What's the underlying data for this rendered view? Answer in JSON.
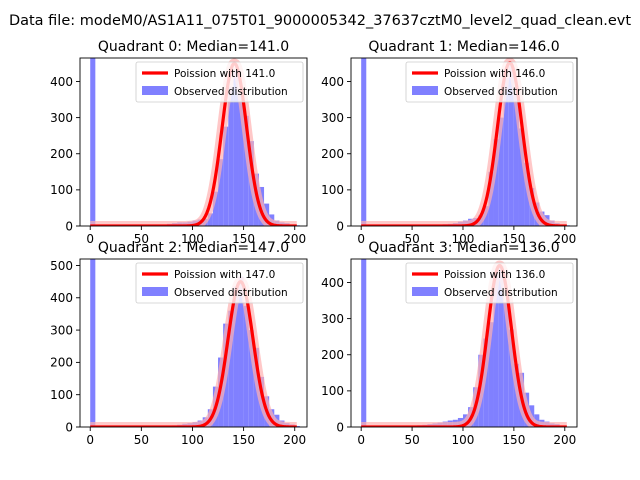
{
  "suptitle": "Data file: modeM0/AS1A11_075T01_9000005342_37637cztM0_level2_quad_clean.evt",
  "colors": {
    "hist": "#8080ff",
    "fit": "#ff0000",
    "fit_band": "#ffb0b0"
  },
  "chart_data": [
    {
      "type": "bar",
      "title": "Quadrant 0: Median=141.0",
      "xlim": [
        -10,
        212
      ],
      "ylim": [
        0,
        465
      ],
      "xticks": [
        0,
        50,
        100,
        150,
        200
      ],
      "yticks": [
        0,
        100,
        200,
        300,
        400
      ],
      "legend": [
        "Poission with 141.0",
        "Observed distribution"
      ],
      "legend_position": "top-right",
      "mu": 141.0,
      "fit_peak": 450,
      "fit_sigma": 12.0,
      "bin_width": 5,
      "bins": [
        [
          0,
          465
        ],
        [
          5,
          3
        ],
        [
          10,
          1
        ],
        [
          50,
          2
        ],
        [
          75,
          6
        ],
        [
          80,
          8
        ],
        [
          85,
          10
        ],
        [
          90,
          10
        ],
        [
          95,
          12
        ],
        [
          100,
          15
        ],
        [
          105,
          18
        ],
        [
          110,
          20
        ],
        [
          115,
          35
        ],
        [
          120,
          95
        ],
        [
          125,
          185
        ],
        [
          130,
          275
        ],
        [
          135,
          385
        ],
        [
          140,
          430
        ],
        [
          145,
          375
        ],
        [
          150,
          305
        ],
        [
          155,
          235
        ],
        [
          160,
          145
        ],
        [
          165,
          108
        ],
        [
          170,
          62
        ],
        [
          175,
          32
        ],
        [
          180,
          15
        ],
        [
          185,
          10
        ],
        [
          190,
          8
        ],
        [
          195,
          4
        ],
        [
          200,
          2
        ]
      ]
    },
    {
      "type": "bar",
      "title": "Quadrant 1: Median=146.0",
      "xlim": [
        -10,
        212
      ],
      "ylim": [
        0,
        465
      ],
      "xticks": [
        0,
        50,
        100,
        150,
        200
      ],
      "yticks": [
        0,
        100,
        200,
        300,
        400
      ],
      "legend": [
        "Poission with 146.0",
        "Observed distribution"
      ],
      "legend_position": "top-right",
      "mu": 146.0,
      "fit_peak": 452,
      "fit_sigma": 12.1,
      "bin_width": 5,
      "bins": [
        [
          0,
          465
        ],
        [
          5,
          3
        ],
        [
          10,
          1
        ],
        [
          80,
          5
        ],
        [
          85,
          6
        ],
        [
          90,
          8
        ],
        [
          95,
          12
        ],
        [
          100,
          15
        ],
        [
          105,
          20
        ],
        [
          110,
          22
        ],
        [
          115,
          30
        ],
        [
          120,
          55
        ],
        [
          125,
          150
        ],
        [
          130,
          240
        ],
        [
          135,
          300
        ],
        [
          140,
          410
        ],
        [
          145,
          445
        ],
        [
          150,
          385
        ],
        [
          155,
          270
        ],
        [
          160,
          175
        ],
        [
          165,
          105
        ],
        [
          170,
          65
        ],
        [
          175,
          40
        ],
        [
          180,
          30
        ],
        [
          185,
          15
        ],
        [
          190,
          8
        ],
        [
          195,
          4
        ],
        [
          200,
          2
        ]
      ]
    },
    {
      "type": "bar",
      "title": "Quadrant 2: Median=147.0",
      "xlim": [
        -10,
        212
      ],
      "ylim": [
        0,
        520
      ],
      "xticks": [
        0,
        50,
        100,
        150,
        200
      ],
      "yticks": [
        0,
        100,
        200,
        300,
        400,
        500
      ],
      "legend": [
        "Poission with 147.0",
        "Observed distribution"
      ],
      "legend_position": "top-right",
      "mu": 147.0,
      "fit_peak": 450,
      "fit_sigma": 12.2,
      "bin_width": 5,
      "bins": [
        [
          0,
          520
        ],
        [
          5,
          3
        ],
        [
          10,
          1
        ],
        [
          80,
          5
        ],
        [
          85,
          7
        ],
        [
          90,
          10
        ],
        [
          95,
          12
        ],
        [
          100,
          15
        ],
        [
          105,
          20
        ],
        [
          110,
          30
        ],
        [
          115,
          55
        ],
        [
          120,
          125
        ],
        [
          125,
          215
        ],
        [
          130,
          320
        ],
        [
          135,
          360
        ],
        [
          140,
          435
        ],
        [
          145,
          465
        ],
        [
          150,
          375
        ],
        [
          155,
          300
        ],
        [
          160,
          245
        ],
        [
          165,
          155
        ],
        [
          170,
          95
        ],
        [
          175,
          55
        ],
        [
          180,
          38
        ],
        [
          185,
          20
        ],
        [
          190,
          12
        ],
        [
          195,
          8
        ],
        [
          200,
          3
        ]
      ]
    },
    {
      "type": "bar",
      "title": "Quadrant 3: Median=136.0",
      "xlim": [
        -10,
        212
      ],
      "ylim": [
        0,
        465
      ],
      "xticks": [
        0,
        50,
        100,
        150,
        200
      ],
      "yticks": [
        0,
        100,
        200,
        300,
        400
      ],
      "legend": [
        "Poission with 136.0",
        "Observed distribution"
      ],
      "legend_position": "top-right",
      "mu": 136.0,
      "fit_peak": 447,
      "fit_sigma": 11.7,
      "bin_width": 5,
      "bins": [
        [
          0,
          465
        ],
        [
          5,
          3
        ],
        [
          10,
          1
        ],
        [
          50,
          3
        ],
        [
          55,
          5
        ],
        [
          60,
          6
        ],
        [
          65,
          8
        ],
        [
          70,
          10
        ],
        [
          75,
          12
        ],
        [
          80,
          15
        ],
        [
          85,
          18
        ],
        [
          90,
          20
        ],
        [
          95,
          25
        ],
        [
          100,
          35
        ],
        [
          105,
          55
        ],
        [
          110,
          110
        ],
        [
          115,
          200
        ],
        [
          120,
          245
        ],
        [
          125,
          290
        ],
        [
          130,
          420
        ],
        [
          135,
          445
        ],
        [
          140,
          345
        ],
        [
          145,
          270
        ],
        [
          150,
          175
        ],
        [
          155,
          150
        ],
        [
          160,
          95
        ],
        [
          165,
          60
        ],
        [
          170,
          35
        ],
        [
          175,
          20
        ],
        [
          180,
          15
        ],
        [
          185,
          10
        ],
        [
          190,
          8
        ],
        [
          195,
          3
        ]
      ]
    }
  ]
}
